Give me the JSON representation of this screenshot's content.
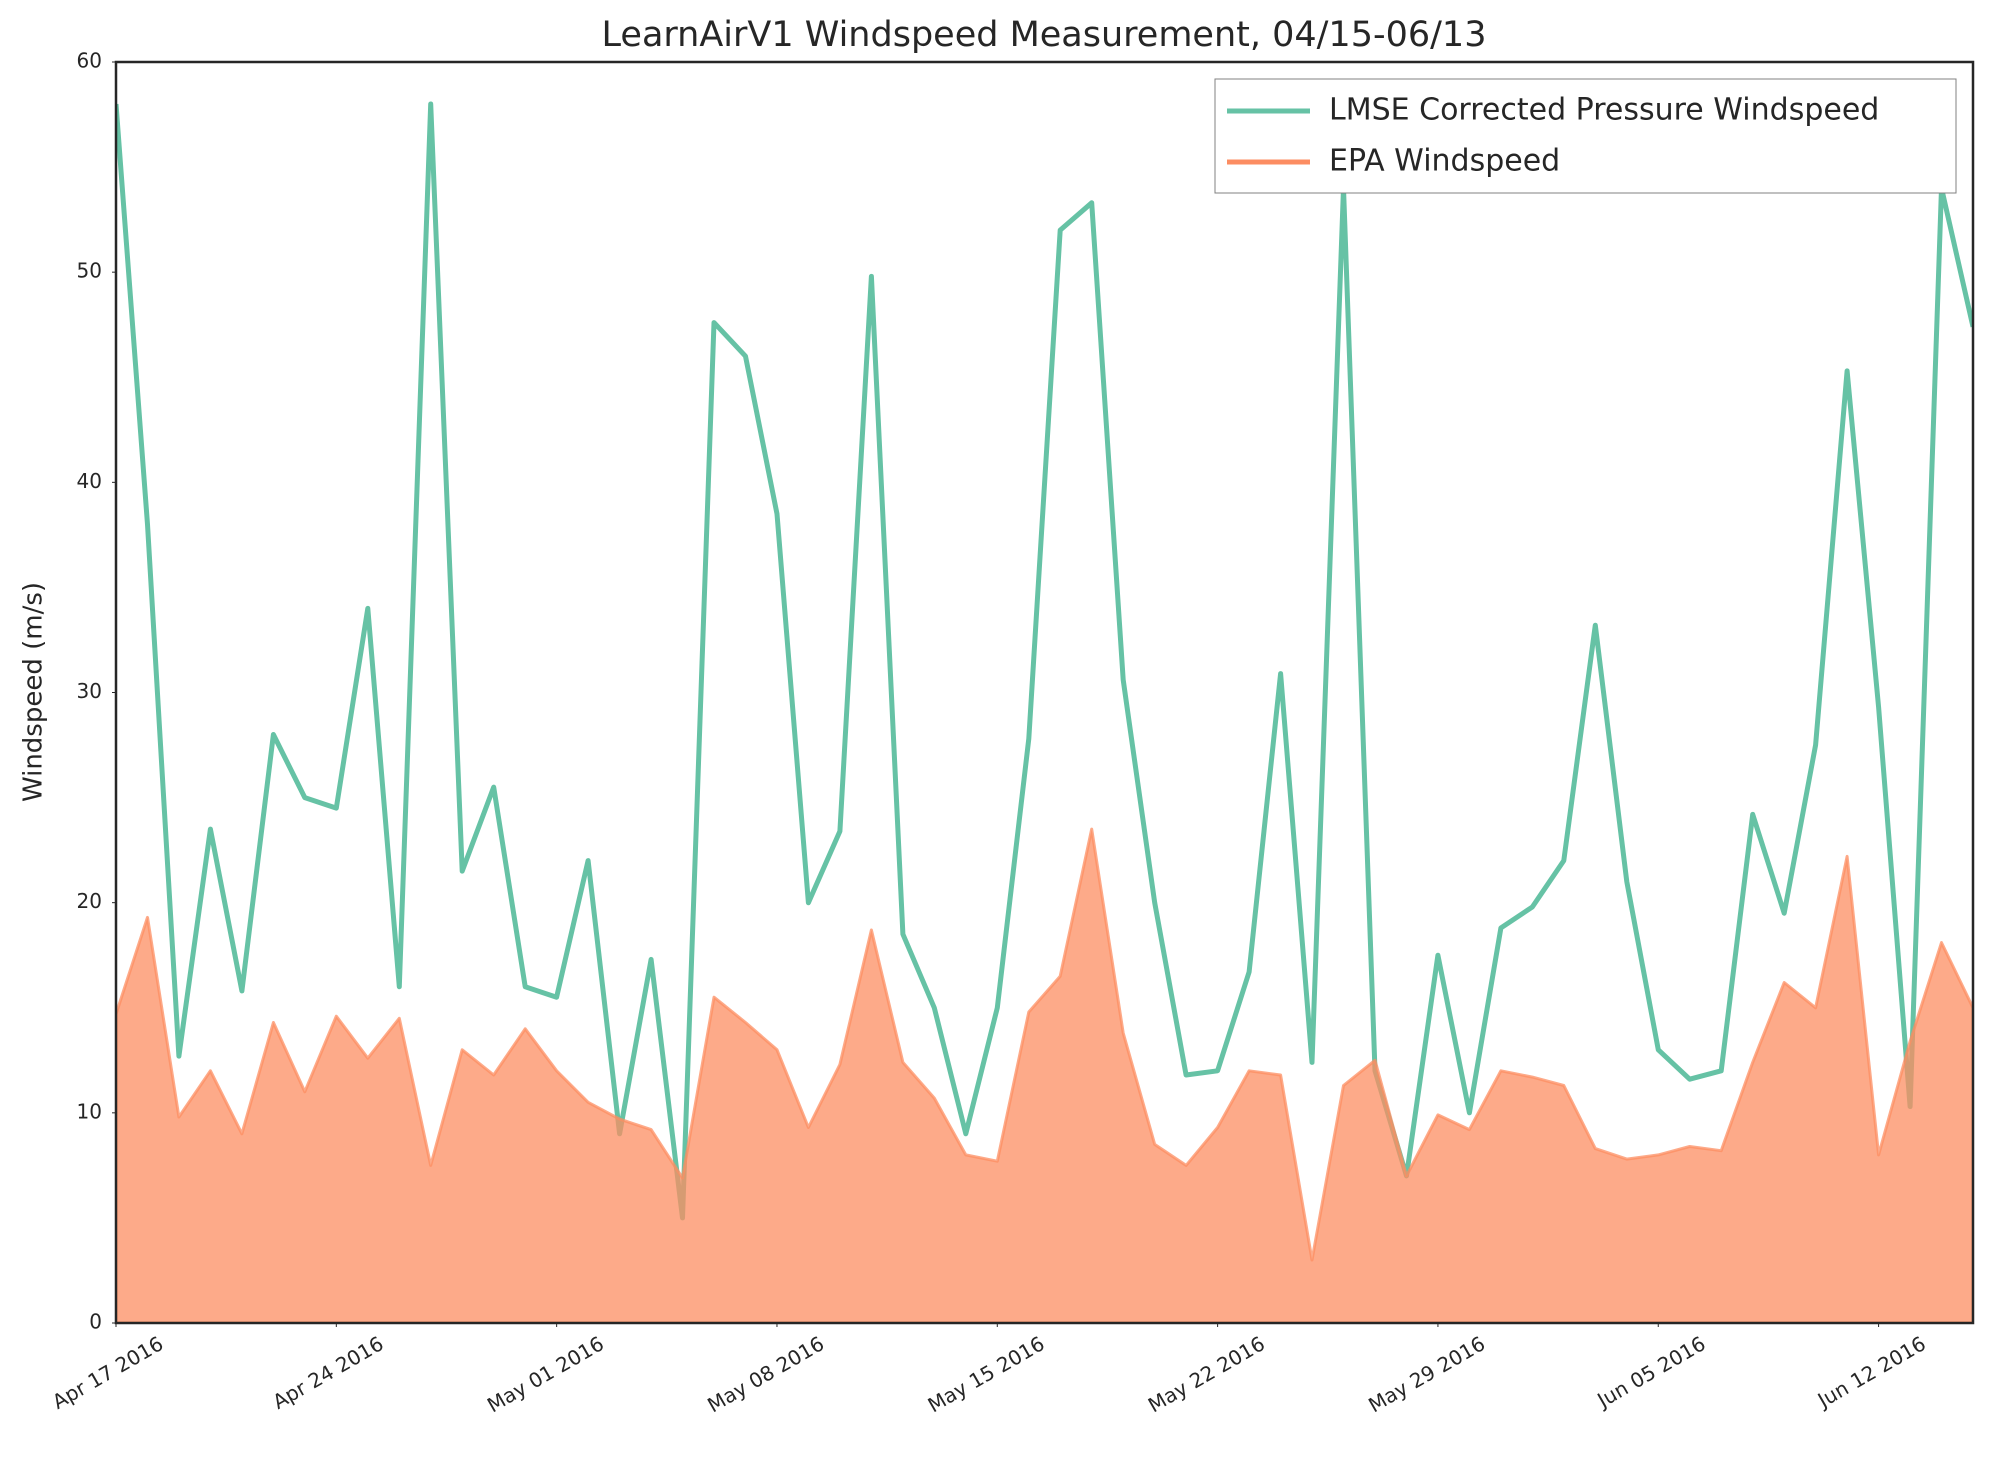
{
  "chart_data": {
    "type": "line",
    "title": "LearnAirV1 Windspeed Measurement, 04/15-06/13",
    "y_label": "Windspeed (m/s)",
    "x": [
      "2016-04-17",
      "2016-04-18",
      "2016-04-19",
      "2016-04-20",
      "2016-04-21",
      "2016-04-22",
      "2016-04-23",
      "2016-04-24",
      "2016-04-25",
      "2016-04-26",
      "2016-04-27",
      "2016-04-28",
      "2016-04-29",
      "2016-04-30",
      "2016-05-01",
      "2016-05-02",
      "2016-05-03",
      "2016-05-04",
      "2016-05-05",
      "2016-05-06",
      "2016-05-07",
      "2016-05-08",
      "2016-05-09",
      "2016-05-10",
      "2016-05-11",
      "2016-05-12",
      "2016-05-13",
      "2016-05-14",
      "2016-05-15",
      "2016-05-16",
      "2016-05-17",
      "2016-05-18",
      "2016-05-19",
      "2016-05-20",
      "2016-05-21",
      "2016-05-22",
      "2016-05-23",
      "2016-05-24",
      "2016-05-25",
      "2016-05-26",
      "2016-05-27",
      "2016-05-28",
      "2016-05-29",
      "2016-05-30",
      "2016-05-31",
      "2016-06-01",
      "2016-06-02",
      "2016-06-03",
      "2016-06-04",
      "2016-06-05",
      "2016-06-06",
      "2016-06-07",
      "2016-06-08",
      "2016-06-09",
      "2016-06-10",
      "2016-06-11",
      "2016-06-12",
      "2016-06-13",
      "2016-06-14",
      "2016-06-15"
    ],
    "series": [
      {
        "name": "LMSE Corrected Pressure Windspeed",
        "color": "#66c2a5",
        "values": [
          58,
          38,
          12.7,
          23.5,
          15.8,
          28,
          25,
          24.5,
          34,
          16,
          58,
          21.5,
          25.5,
          16,
          15.5,
          22,
          9,
          17.3,
          5,
          47.6,
          46,
          38.5,
          20,
          23.4,
          49.8,
          18.5,
          15,
          9,
          15,
          27.8,
          52,
          53.3,
          30.6,
          20,
          11.8,
          12,
          16.7,
          30.9,
          12.4,
          54,
          12,
          7,
          17.5,
          10,
          18.8,
          19.8,
          22,
          33.2,
          21,
          13,
          11.6,
          12,
          24.2,
          19.5,
          27.5,
          45.3,
          29.3,
          10.3,
          54,
          47.4
        ]
      },
      {
        "name": "EPA Windspeed",
        "color": "#fc8d62",
        "values": [
          14.7,
          19.3,
          9.8,
          12,
          9,
          14.3,
          11,
          14.6,
          12.6,
          14.5,
          7.5,
          13,
          11.8,
          14,
          12,
          10.5,
          9.7,
          9.2,
          6.9,
          15.5,
          14.3,
          13,
          9.3,
          12.3,
          18.7,
          12.4,
          10.7,
          8,
          7.7,
          14.8,
          16.5,
          23.5,
          13.8,
          8.5,
          7.5,
          9.3,
          12,
          11.8,
          3,
          11.3,
          12.5,
          7,
          9.9,
          9.2,
          12,
          11.7,
          11.3,
          8.3,
          7.8,
          8,
          8.4,
          8.2,
          12.4,
          16.2,
          15,
          22.2,
          8,
          13.4,
          18.1,
          15
        ]
      }
    ],
    "xlim": [
      "2016-04-17",
      "2016-06-15"
    ],
    "xticks": [
      {
        "value": "2016-04-17",
        "label": "Apr 17 2016"
      },
      {
        "value": "2016-04-24",
        "label": "Apr 24 2016"
      },
      {
        "value": "2016-05-01",
        "label": "May 01 2016"
      },
      {
        "value": "2016-05-08",
        "label": "May 08 2016"
      },
      {
        "value": "2016-05-15",
        "label": "May 15 2016"
      },
      {
        "value": "2016-05-22",
        "label": "May 22 2016"
      },
      {
        "value": "2016-05-29",
        "label": "May 29 2016"
      },
      {
        "value": "2016-06-05",
        "label": "Jun 05 2016"
      },
      {
        "value": "2016-06-12",
        "label": "Jun 12 2016"
      }
    ],
    "ylim": [
      0,
      60
    ],
    "yticks": [
      0,
      10,
      20,
      30,
      40,
      50,
      60
    ],
    "legend": "upper right"
  }
}
